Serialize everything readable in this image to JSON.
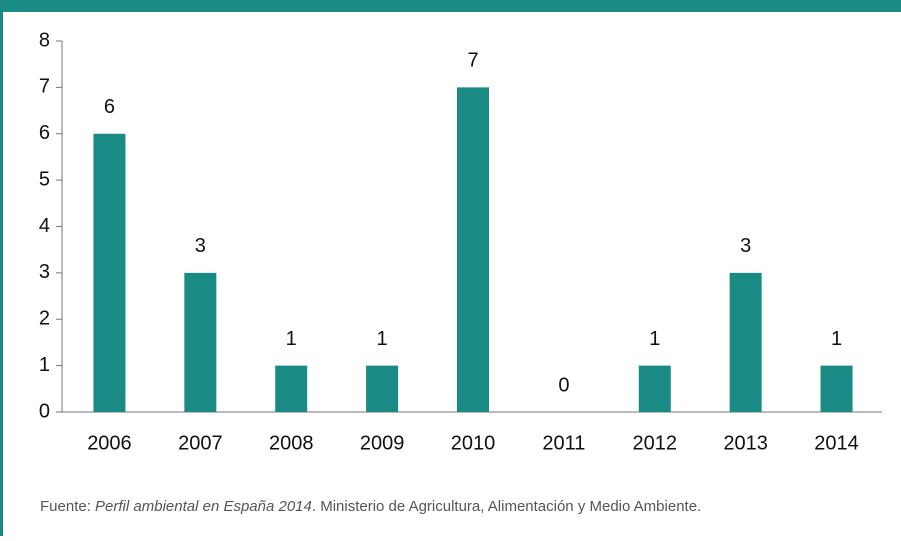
{
  "chart_data": {
    "type": "bar",
    "categories": [
      "2006",
      "2007",
      "2008",
      "2009",
      "2010",
      "2011",
      "2012",
      "2013",
      "2014"
    ],
    "values": [
      6,
      3,
      1,
      1,
      7,
      0,
      1,
      3,
      1
    ],
    "color": "#1a8a84",
    "ylim": [
      0,
      8
    ],
    "yticks": [
      0,
      1,
      2,
      3,
      4,
      5,
      6,
      7,
      8
    ],
    "grid": false,
    "source": {
      "prefix": "Fuente: ",
      "title": "Perfil ambiental en España 2014",
      "suffix": ". Ministerio de Agricultura, Alimentación y Medio Ambiente."
    }
  }
}
